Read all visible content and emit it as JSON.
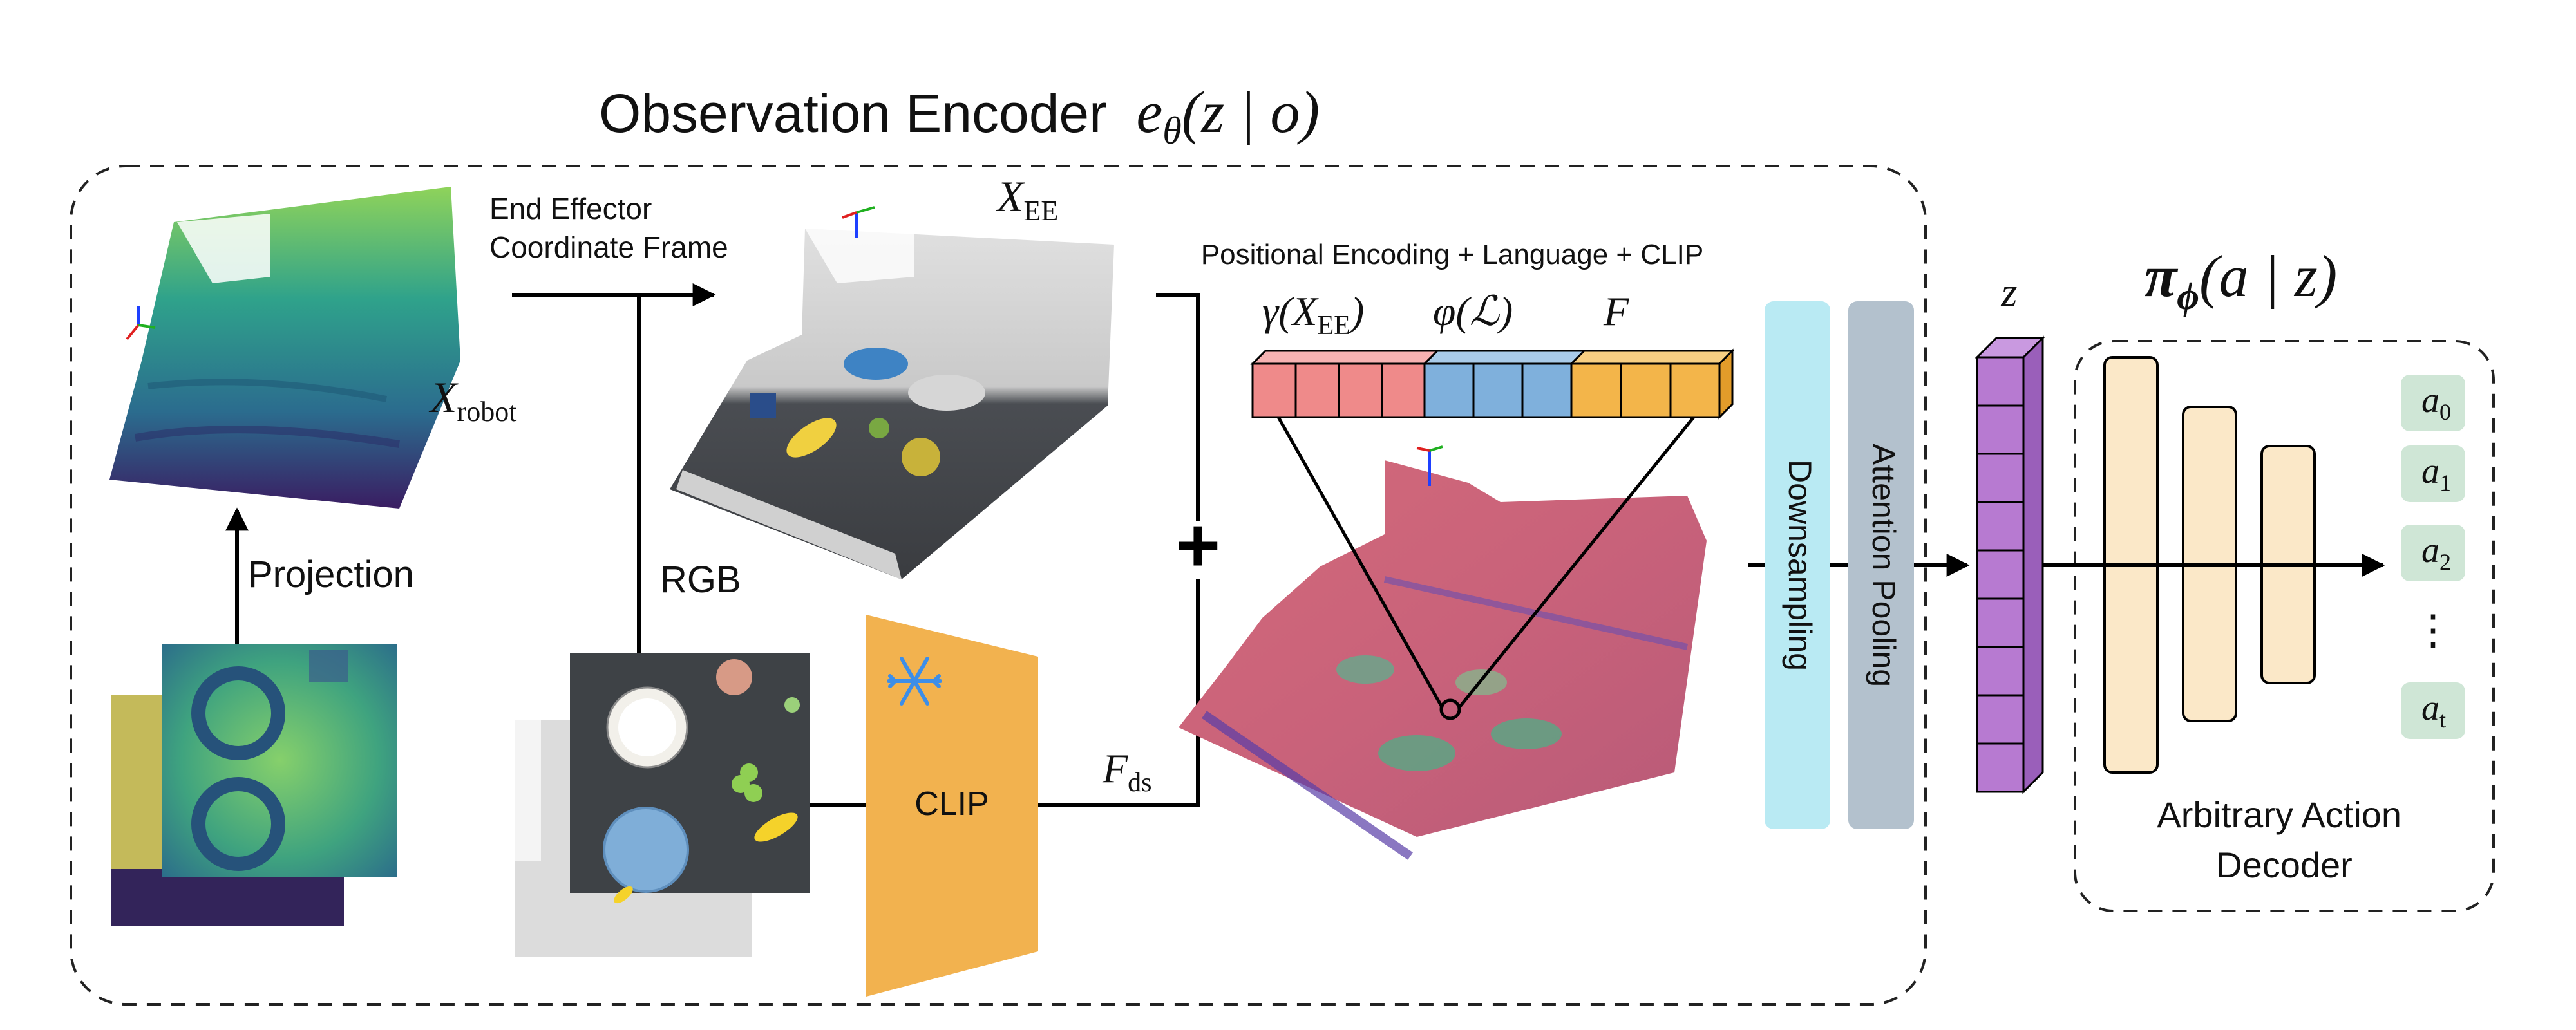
{
  "encoder": {
    "title_text": "Observation Encoder",
    "title_math": "e",
    "title_sub": "θ",
    "title_args": "(z | o)"
  },
  "labels": {
    "end_effector_line1": "End Effector",
    "end_effector_line2": "Coordinate Frame",
    "x_ee": "X",
    "x_ee_sub": "EE",
    "x_robot": "X",
    "x_robot_sub": "robot",
    "projection": "Projection",
    "rgb": "RGB",
    "clip": "CLIP",
    "f_ds": "F",
    "f_ds_sub": "ds",
    "plus": "+",
    "positional_header": "Positional Encoding + Language + CLIP",
    "gamma_label": "γ(X",
    "gamma_sub": "EE",
    "gamma_close": ")",
    "phi_label": "φ(ℒ)",
    "f_label": "F",
    "downsampling": "Downsampling",
    "attention_pooling": "Attention Pooling",
    "z": "z"
  },
  "decoder": {
    "policy_main": "π",
    "policy_sub": "ϕ",
    "policy_args": "(a | z)",
    "title_line1": "Arbitrary Action",
    "title_line2": "Decoder",
    "actions": [
      {
        "base": "a",
        "sub": "0"
      },
      {
        "base": "a",
        "sub": "1"
      },
      {
        "base": "a",
        "sub": "2"
      },
      {
        "base": "⋮",
        "sub": ""
      },
      {
        "base": "a",
        "sub": "t"
      }
    ]
  },
  "colors": {
    "token_red": "#ef8a8a",
    "token_blue": "#7fb0dc",
    "token_orange": "#f3b54a",
    "clip_orange": "#f2b24f",
    "downsampling_cyan": "#b9eaf3",
    "attention_gray": "#b3c1cd",
    "z_purple": "#b77ad1",
    "decoder_beige": "#fbe8c8",
    "action_green": "#cfe6d6"
  },
  "icons": {
    "snowflake": "snowflake-icon",
    "axes": "coordinate-axes-icon"
  }
}
